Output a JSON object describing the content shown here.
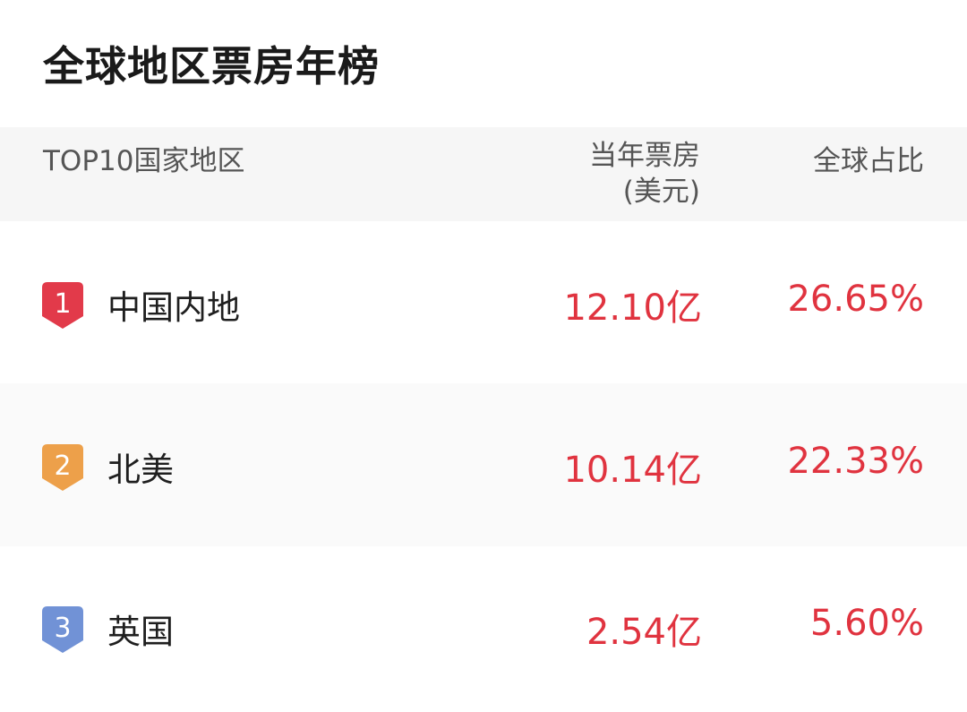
{
  "title": "全球地区票房年榜",
  "header": {
    "region": "TOP10国家地区",
    "boxoffice_line1": "当年票房",
    "boxoffice_line2": "(美元)",
    "share": "全球占比"
  },
  "rows": [
    {
      "rank": "1",
      "name": "中国内地",
      "boxoffice": "12.10亿",
      "share": "26.65%",
      "badge_color": "#e23a4a"
    },
    {
      "rank": "2",
      "name": "北美",
      "boxoffice": "10.14亿",
      "share": "22.33%",
      "badge_color": "#eda04a"
    },
    {
      "rank": "3",
      "name": "英国",
      "boxoffice": "2.54亿",
      "share": "5.60%",
      "badge_color": "#7192d6"
    }
  ],
  "colors": {
    "value_red": "#e0333f"
  }
}
